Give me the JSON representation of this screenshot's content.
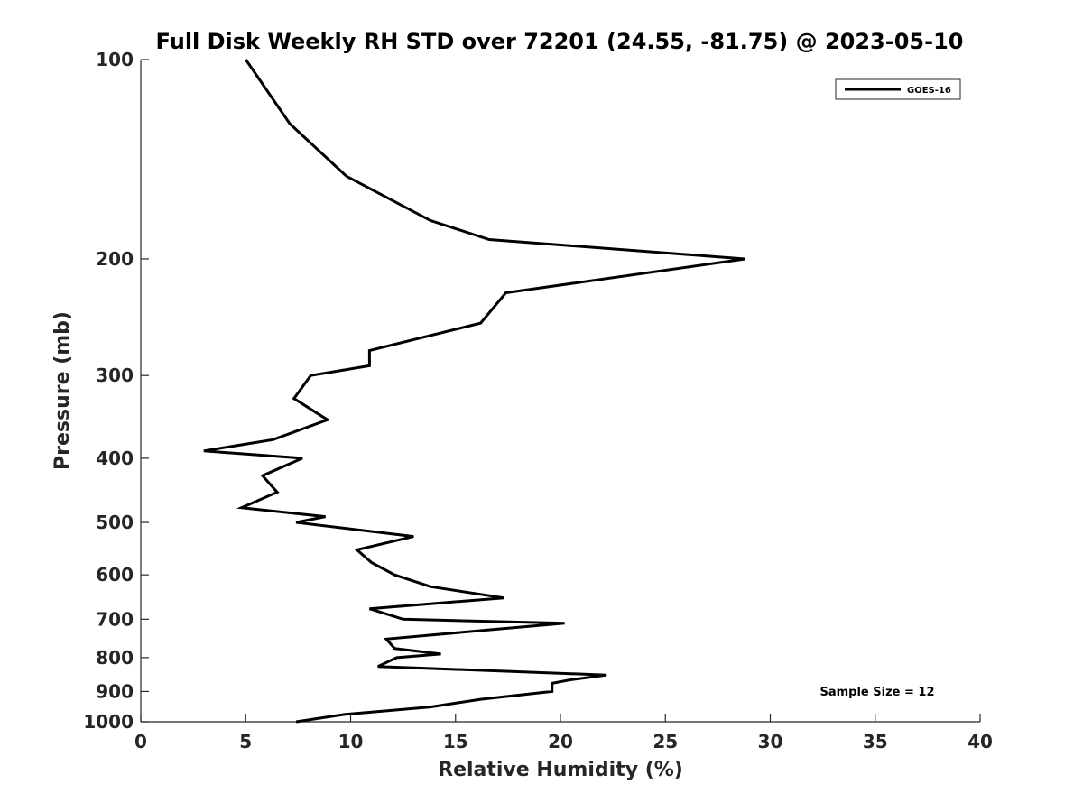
{
  "chart_data": {
    "type": "line",
    "title": "Full Disk Weekly RH STD over 72201 (24.55, -81.75) @ 2023-05-10",
    "xlabel": "Relative Humidity (%)",
    "ylabel": "Pressure (mb)",
    "xlim": [
      0,
      40
    ],
    "ylim": [
      100,
      1000
    ],
    "y_scale": "log",
    "y_reversed": true,
    "x_ticks": [
      "0",
      "5",
      "10",
      "15",
      "20",
      "25",
      "30",
      "35",
      "40"
    ],
    "y_ticks": [
      100,
      200,
      300,
      400,
      500,
      600,
      700,
      800,
      900,
      1000
    ],
    "y_tick_labels": [
      "100",
      "200",
      "300",
      "400",
      "500",
      "600",
      "700",
      "800",
      "900",
      "1000"
    ],
    "legend_position": "top-right",
    "grid": false,
    "series": [
      {
        "name": "GOES-16",
        "color": "#000000",
        "points": [
          [
            5.0,
            100
          ],
          [
            7.1,
            125
          ],
          [
            9.8,
            150
          ],
          [
            13.8,
            175
          ],
          [
            16.6,
            187
          ],
          [
            28.8,
            200
          ],
          [
            17.4,
            225
          ],
          [
            16.2,
            250
          ],
          [
            10.9,
            275
          ],
          [
            10.9,
            290
          ],
          [
            8.1,
            300
          ],
          [
            7.3,
            325
          ],
          [
            8.9,
            350
          ],
          [
            6.3,
            375
          ],
          [
            3.0,
            390
          ],
          [
            7.7,
            400
          ],
          [
            5.8,
            425
          ],
          [
            6.5,
            450
          ],
          [
            4.8,
            475
          ],
          [
            8.8,
            490
          ],
          [
            7.4,
            500
          ],
          [
            13.0,
            525
          ],
          [
            10.3,
            550
          ],
          [
            11.0,
            575
          ],
          [
            12.1,
            600
          ],
          [
            13.8,
            625
          ],
          [
            17.3,
            650
          ],
          [
            10.9,
            675
          ],
          [
            12.5,
            700
          ],
          [
            20.2,
            710
          ],
          [
            16.9,
            725
          ],
          [
            11.7,
            750
          ],
          [
            12.1,
            775
          ],
          [
            14.3,
            790
          ],
          [
            12.2,
            800
          ],
          [
            11.3,
            825
          ],
          [
            22.2,
            850
          ],
          [
            20.4,
            865
          ],
          [
            19.6,
            875
          ],
          [
            19.6,
            900
          ],
          [
            16.2,
            925
          ],
          [
            13.8,
            950
          ],
          [
            9.7,
            975
          ],
          [
            7.4,
            1000
          ]
        ]
      }
    ],
    "annotations": [
      "Sample Size = 12"
    ]
  }
}
